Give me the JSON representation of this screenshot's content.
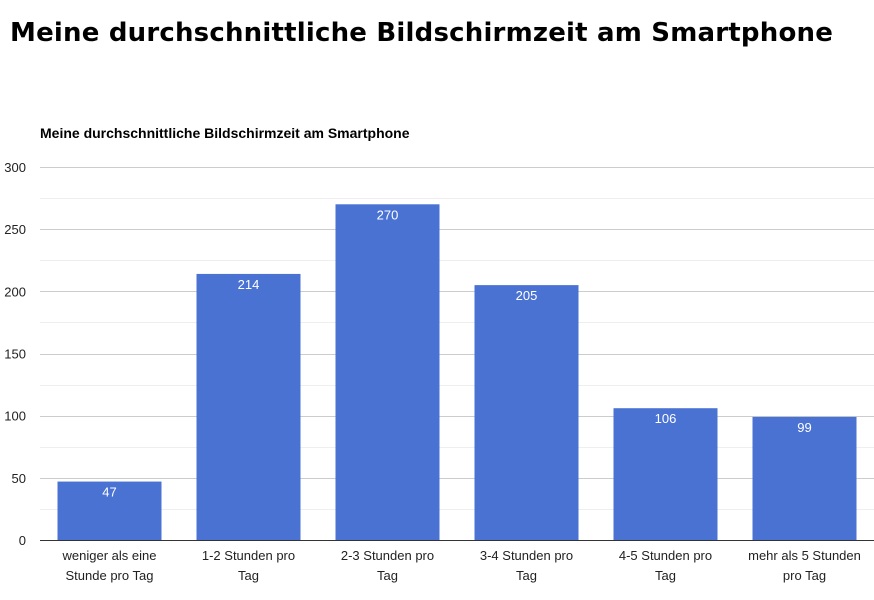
{
  "page": {
    "heading": "Meine durchschnittliche Bildschirmzeit am Smartphone"
  },
  "chart_data": {
    "type": "bar",
    "title": "Meine durchschnittliche Bildschirmzeit am Smartphone",
    "xlabel": "",
    "ylabel": "",
    "categories": [
      "weniger als eine Stunde pro Tag",
      "1-2 Stunden pro Tag",
      "2-3 Stunden pro Tag",
      "3-4 Stunden pro Tag",
      "4-5 Stunden pro Tag",
      "mehr als 5 Stunden pro Tag"
    ],
    "category_lines": [
      [
        "weniger als eine",
        "Stunde pro Tag"
      ],
      [
        "1-2 Stunden pro",
        "Tag"
      ],
      [
        "2-3 Stunden pro",
        "Tag"
      ],
      [
        "3-4 Stunden pro",
        "Tag"
      ],
      [
        "4-5 Stunden pro",
        "Tag"
      ],
      [
        "mehr als 5 Stunden",
        "pro Tag"
      ]
    ],
    "values": [
      47,
      214,
      270,
      205,
      106,
      99
    ],
    "ylim": [
      0,
      300
    ],
    "yticks": [
      0,
      50,
      100,
      150,
      200,
      250,
      300
    ],
    "grid": true,
    "legend": "none",
    "colors": {
      "bar": "#4a72d3",
      "label": "#ffffff",
      "grid": "#cccccc",
      "axis": "#333333",
      "text": "#222222"
    }
  }
}
